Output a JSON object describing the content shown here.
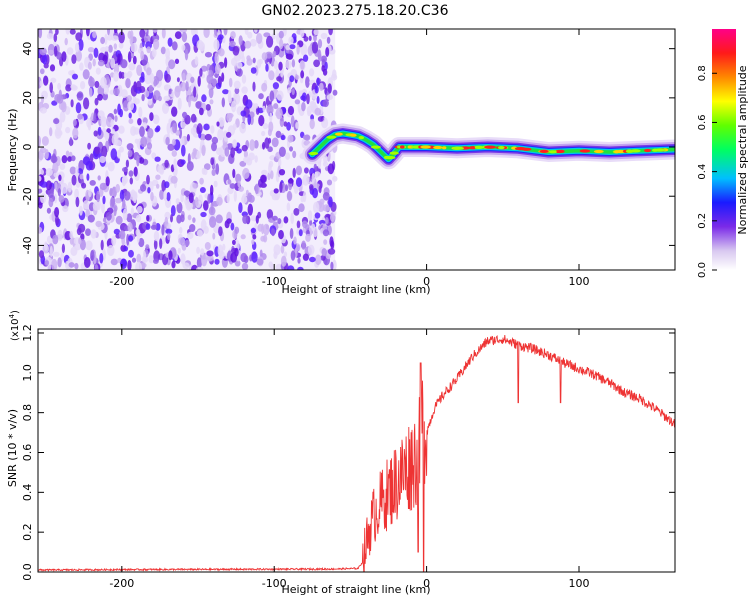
{
  "title": "GN02.2023.275.18.20.C36",
  "chart_data": [
    {
      "type": "heatmap",
      "xlabel": "Height of straight line (km)",
      "ylabel": "Frequency (Hz)",
      "xlim": [
        -255,
        163
      ],
      "ylim": [
        -50,
        48
      ],
      "x_ticks": [
        -200,
        -100,
        0,
        100
      ],
      "y_ticks": [
        -40,
        -20,
        0,
        20,
        40
      ],
      "noise_region_x": [
        -255,
        -60
      ],
      "signal_track": {
        "x": [
          -75,
          -70,
          -65,
          -60,
          -55,
          -50,
          -45,
          -40,
          -35,
          -30,
          -25,
          -22,
          -18,
          -15,
          -10,
          0,
          20,
          40,
          60,
          80,
          100,
          120,
          140,
          163
        ],
        "freq": [
          -3,
          0,
          3,
          5,
          5.5,
          5,
          4.5,
          3,
          1,
          -2,
          -5,
          -3,
          0,
          0,
          0,
          0,
          -0.5,
          0,
          -0.5,
          -2,
          -1.5,
          -2,
          -1.5,
          -1
        ]
      },
      "colorbar": {
        "label": "Normalized spectral amplitude",
        "ticks": [
          "0.0",
          "0.2",
          "0.4",
          "0.6",
          "0.8"
        ],
        "range": [
          0,
          0.98
        ]
      }
    },
    {
      "type": "line",
      "xlabel": "Height of straight line (km)",
      "ylabel": "SNR (10 * v/v)",
      "multiplier_label": "(x10",
      "multiplier_exp": "4",
      "multiplier_close": ")",
      "xlim": [
        -255,
        163
      ],
      "ylim": [
        0,
        1.22
      ],
      "x_ticks": [
        -200,
        -100,
        0,
        100
      ],
      "y_ticks": [
        "0.0",
        "0.2",
        "0.4",
        "0.6",
        "0.8",
        "1.0",
        "1.2"
      ],
      "series": [
        {
          "color": "#ee3333",
          "x": [
            -255,
            -200,
            -150,
            -100,
            -60,
            -45,
            -42,
            -38,
            -35,
            -30,
            -25,
            -20,
            -15,
            -10,
            -5,
            -3,
            0,
            5,
            10,
            20,
            30,
            40,
            50,
            60,
            70,
            80,
            90,
            100,
            110,
            120,
            130,
            140,
            150,
            160,
            163
          ],
          "y": [
            0.01,
            0.012,
            0.013,
            0.014,
            0.015,
            0.018,
            0.05,
            0.2,
            0.28,
            0.35,
            0.4,
            0.45,
            0.5,
            0.55,
            0.6,
            0.75,
            0.7,
            0.82,
            0.88,
            0.97,
            1.08,
            1.16,
            1.17,
            1.14,
            1.12,
            1.09,
            1.05,
            1.02,
            0.99,
            0.95,
            0.9,
            0.87,
            0.82,
            0.76,
            0.74
          ]
        }
      ]
    }
  ]
}
